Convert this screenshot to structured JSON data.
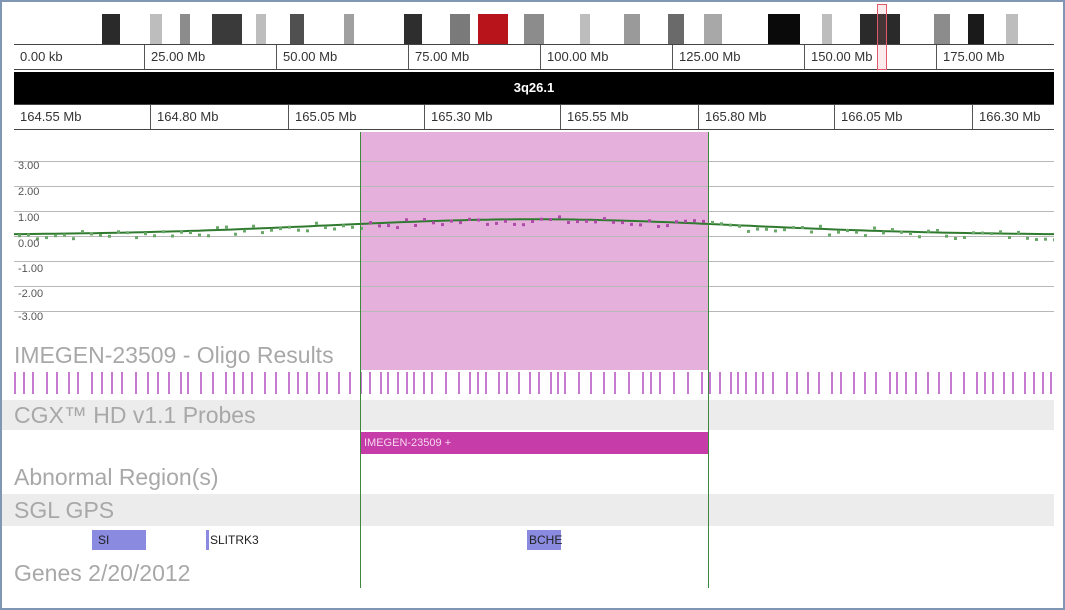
{
  "ideogram": {
    "colors": {
      "white": "#ffffff",
      "light": "#c8c8c8",
      "mid": "#8c8c8c",
      "dark": "#2a2a2a",
      "black": "#050505",
      "centromere": "#b8141c"
    }
  },
  "ruler_top": {
    "ticks": [
      "0.00 kb",
      "25.00 Mb",
      "50.00 Mb",
      "75.00 Mb",
      "100.00 Mb",
      "125.00 Mb",
      "150.00 Mb",
      "175.00 Mb"
    ]
  },
  "band": {
    "label": "3q26.1"
  },
  "ruler_zoom": {
    "ticks": [
      "164.55 Mb",
      "164.80 Mb",
      "165.05 Mb",
      "165.30 Mb",
      "165.55 Mb",
      "165.80 Mb",
      "166.05 Mb",
      "166.30 Mb"
    ]
  },
  "plot": {
    "y_labels": [
      "3.00",
      "2.00",
      "1.00",
      "0.00",
      "-1.00",
      "-2.00",
      "-3.00"
    ],
    "colors": {
      "line": "#2f7a2f",
      "point": "#6aa86a",
      "point_highlight": "#b04aa8",
      "grid": "#b8b8b8"
    }
  },
  "tracks": {
    "oligo_results": "IMEGEN-23509 - Oligo Results",
    "probes": "CGX™ HD v1.1 Probes",
    "abnormal_regions": "Abnormal Region(s)",
    "sgl_gps": "SGL GPS",
    "genes": "Genes 2/20/2012"
  },
  "abnormal_region": {
    "label": "IMEGEN-23509 +"
  },
  "genes": [
    {
      "name": "SI"
    },
    {
      "name": "SLITRK3"
    },
    {
      "name": "BCHE"
    }
  ],
  "colors": {
    "highlight": "#de96d2",
    "abnormal": "#c63ca8",
    "gene_box": "#8a8be0",
    "probe": "#c67ad0",
    "frame": "#7f97b4"
  }
}
